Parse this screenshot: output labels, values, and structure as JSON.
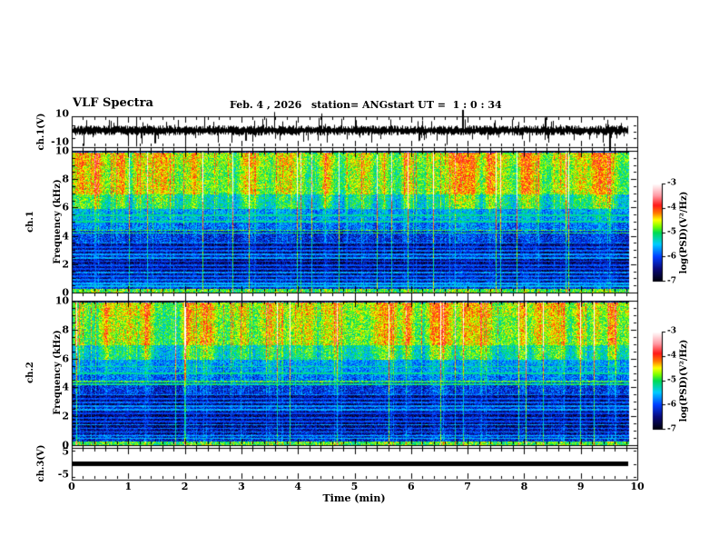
{
  "header": {
    "title": "VLF Spectra",
    "date": "Feb. 4 , 2026",
    "station": "station= ANG",
    "start_ut": "start UT =  1 : 0 : 34"
  },
  "panels": {
    "ch1_wave": {
      "ylabel": "ch.1(V)",
      "yticks": [
        "10",
        "-10"
      ]
    },
    "spec1": {
      "ylabel_ch": "ch.1",
      "ylabel_axis": "Frequency (kHz)",
      "yticks": [
        "10",
        "8",
        "6",
        "4",
        "2",
        "0"
      ]
    },
    "spec2": {
      "ylabel_ch": "ch.2",
      "ylabel_axis": "Frequency (kHz)",
      "yticks": [
        "10",
        "8",
        "6",
        "4",
        "2",
        "0"
      ]
    },
    "ch3_wave": {
      "ylabel": "ch.3(V)",
      "yticks": [
        "5",
        "-5"
      ]
    }
  },
  "xaxis": {
    "label": "Time (min)",
    "ticks": [
      "0",
      "1",
      "2",
      "3",
      "4",
      "5",
      "6",
      "7",
      "8",
      "9",
      "10"
    ],
    "range": [
      0,
      10
    ],
    "minor_step_min": 0.2
  },
  "colorbar": {
    "label": "log(PSD)(V²/Hz)",
    "ticks": [
      "-3",
      "-4",
      "-5",
      "-6",
      "-7"
    ],
    "range": [
      -7,
      -3
    ]
  },
  "chart_data": [
    {
      "type": "line",
      "name": "ch.1 time series",
      "ylabel": "ch.1(V)",
      "ylim": [
        -12,
        12
      ],
      "yticks": [
        10,
        -10
      ],
      "x_range_min": [
        0,
        9.85
      ],
      "signal": {
        "mean_v": 1.0,
        "noise_amp_v": 1.4,
        "spike_rate": 0.06,
        "notable_spikes": [
          {
            "t_min": 1.45,
            "v": -5
          },
          {
            "t_min": 3.05,
            "v": -4
          },
          {
            "t_min": 5.0,
            "v": 4
          },
          {
            "t_min": 6.9,
            "v": 8
          },
          {
            "t_min": 8.35,
            "v": 5
          },
          {
            "t_min": 9.5,
            "v": -8
          }
        ]
      }
    },
    {
      "type": "heatmap",
      "name": "ch.1 VLF spectrogram",
      "ylabel": "ch.1 Frequency (kHz)",
      "ylim_khz": [
        0,
        10
      ],
      "yticks": [
        0,
        2,
        4,
        6,
        8,
        10
      ],
      "x_range_min": [
        0,
        9.85
      ],
      "z_label": "log(PSD)(V²/Hz)",
      "z_range": [
        -7,
        -3
      ],
      "legend_position": "right-colorbar",
      "bands": [
        {
          "f": [
            0,
            0.3
          ],
          "psd": -5.0
        },
        {
          "f": [
            0.3,
            0.8
          ],
          "psd": -6.2
        },
        {
          "f": [
            0.8,
            1.3
          ],
          "psd": -6.45
        },
        {
          "f": [
            1.3,
            2.4
          ],
          "psd": -6.6
        },
        {
          "f": [
            2.4,
            2.8
          ],
          "psd": -6.3
        },
        {
          "f": [
            2.8,
            3.6
          ],
          "psd": -6.55
        },
        {
          "f": [
            3.6,
            4.5
          ],
          "psd": -6.15
        },
        {
          "f": [
            4.5,
            5.0
          ],
          "psd": -5.9
        },
        {
          "f": [
            5.0,
            6.0
          ],
          "psd": -5.7
        },
        {
          "f": [
            6.0,
            7.0
          ],
          "psd": -5.2
        },
        {
          "f": [
            7.0,
            9.0
          ],
          "psd": -4.75
        },
        {
          "f": [
            9.0,
            10.0
          ],
          "psd": -4.65
        }
      ],
      "tonal_lines_khz": [
        {
          "f": 4.45,
          "dpsd": 1.15
        },
        {
          "f": 4.25,
          "dpsd": 1.0
        },
        {
          "f": 5.5,
          "dpsd": 0.5
        },
        {
          "f": 5.05,
          "dpsd": 0.5
        },
        {
          "f": 3.55,
          "dpsd": 0.8
        },
        {
          "f": 3.25,
          "dpsd": 0.6
        },
        {
          "f": 3.0,
          "dpsd": 0.7
        },
        {
          "f": 2.75,
          "dpsd": 0.6
        },
        {
          "f": 2.5,
          "dpsd": 0.65
        },
        {
          "f": 2.25,
          "dpsd": 0.6
        },
        {
          "f": 1.95,
          "dpsd": 0.65
        },
        {
          "f": 1.7,
          "dpsd": 0.6
        },
        {
          "f": 1.45,
          "dpsd": 0.9
        },
        {
          "f": 1.2,
          "dpsd": 0.6
        },
        {
          "f": 0.95,
          "dpsd": 0.65
        },
        {
          "f": 0.7,
          "dpsd": 0.6
        },
        {
          "f": 0.5,
          "dpsd": 0.7
        }
      ],
      "sferic_streaks": {
        "p_strong": 0.018,
        "boost_strong": [
          1.7,
          2.7
        ],
        "p_medium": 0.1,
        "boost_medium": [
          0.45,
          1.0
        ]
      },
      "seed": 11
    },
    {
      "type": "heatmap",
      "name": "ch.2 VLF spectrogram",
      "ylabel": "ch.2 Frequency (kHz)",
      "ylim_khz": [
        0,
        10
      ],
      "yticks": [
        0,
        2,
        4,
        6,
        8,
        10
      ],
      "x_range_min": [
        0,
        9.85
      ],
      "z_label": "log(PSD)(V²/Hz)",
      "z_range": [
        -7,
        -3
      ],
      "legend_position": "right-colorbar",
      "bands": [
        {
          "f": [
            0,
            0.3
          ],
          "psd": -5.0
        },
        {
          "f": [
            0.3,
            0.8
          ],
          "psd": -6.2
        },
        {
          "f": [
            0.8,
            1.3
          ],
          "psd": -6.45
        },
        {
          "f": [
            1.3,
            2.4
          ],
          "psd": -6.6
        },
        {
          "f": [
            2.4,
            2.8
          ],
          "psd": -6.3
        },
        {
          "f": [
            2.8,
            3.6
          ],
          "psd": -6.55
        },
        {
          "f": [
            3.6,
            4.5
          ],
          "psd": -6.15
        },
        {
          "f": [
            4.5,
            5.0
          ],
          "psd": -5.9
        },
        {
          "f": [
            5.0,
            6.0
          ],
          "psd": -5.7
        },
        {
          "f": [
            6.0,
            7.0
          ],
          "psd": -5.2
        },
        {
          "f": [
            7.0,
            9.0
          ],
          "psd": -4.75
        },
        {
          "f": [
            9.0,
            10.0
          ],
          "psd": -4.65
        }
      ],
      "tonal_lines_khz": [
        {
          "f": 4.45,
          "dpsd": 1.15
        },
        {
          "f": 4.25,
          "dpsd": 1.0
        },
        {
          "f": 5.5,
          "dpsd": 0.5
        },
        {
          "f": 5.05,
          "dpsd": 0.5
        },
        {
          "f": 3.55,
          "dpsd": 0.8
        },
        {
          "f": 3.25,
          "dpsd": 0.6
        },
        {
          "f": 3.0,
          "dpsd": 0.7
        },
        {
          "f": 2.75,
          "dpsd": 0.6
        },
        {
          "f": 2.5,
          "dpsd": 0.65
        },
        {
          "f": 2.25,
          "dpsd": 0.6
        },
        {
          "f": 1.95,
          "dpsd": 0.65
        },
        {
          "f": 1.7,
          "dpsd": 0.6
        },
        {
          "f": 1.45,
          "dpsd": 0.9
        },
        {
          "f": 1.2,
          "dpsd": 0.6
        },
        {
          "f": 0.95,
          "dpsd": 0.65
        },
        {
          "f": 0.7,
          "dpsd": 0.6
        },
        {
          "f": 0.5,
          "dpsd": 0.7
        }
      ],
      "sferic_streaks": {
        "p_strong": 0.018,
        "boost_strong": [
          1.7,
          2.7
        ],
        "p_medium": 0.1,
        "boost_medium": [
          0.45,
          1.0
        ]
      },
      "seed": 29
    },
    {
      "type": "line",
      "name": "ch.3 time series",
      "ylabel": "ch.3(V)",
      "ylim": [
        -6,
        6
      ],
      "yticks": [
        5,
        -5
      ],
      "x_range_min": [
        0,
        9.85
      ],
      "signal": {
        "constant_v": 0
      }
    }
  ],
  "colormap_stops": [
    {
      "t": 0.0,
      "rgb": [
        0,
        0,
        10
      ]
    },
    {
      "t": 0.13,
      "rgb": [
        10,
        10,
        125
      ]
    },
    {
      "t": 0.25,
      "rgb": [
        0,
        60,
        255
      ]
    },
    {
      "t": 0.38,
      "rgb": [
        0,
        205,
        255
      ]
    },
    {
      "t": 0.5,
      "rgb": [
        0,
        220,
        80
      ]
    },
    {
      "t": 0.56,
      "rgb": [
        120,
        255,
        0
      ]
    },
    {
      "t": 0.63,
      "rgb": [
        255,
        255,
        0
      ]
    },
    {
      "t": 0.7,
      "rgb": [
        255,
        120,
        0
      ]
    },
    {
      "t": 0.78,
      "rgb": [
        255,
        25,
        25
      ]
    },
    {
      "t": 0.88,
      "rgb": [
        255,
        155,
        165
      ]
    },
    {
      "t": 1.0,
      "rgb": [
        255,
        255,
        255
      ]
    }
  ]
}
